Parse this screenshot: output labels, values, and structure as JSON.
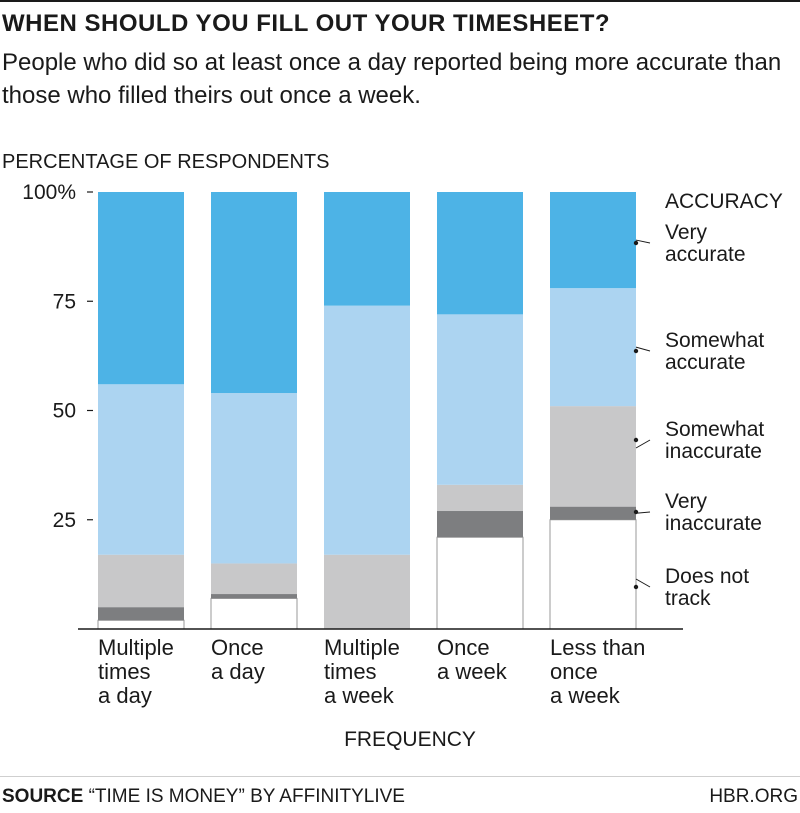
{
  "header": {
    "title": "WHEN SHOULD YOU FILL OUT YOUR TIMESHEET?",
    "subtitle": "People who did so at least once a day reported being more accurate than those who filled theirs out once a week."
  },
  "footer": {
    "source_label": "SOURCE",
    "source_text": "“TIME IS MONEY” BY AFFINITYLIVE",
    "site": "HBR.ORG"
  },
  "chart_data": {
    "type": "bar",
    "stacked": true,
    "ylabel": "PERCENTAGE OF RESPONDENTS",
    "xlabel": "FREQUENCY",
    "legend_title": "ACCURACY",
    "legend_position": "right",
    "ylim": [
      0,
      100
    ],
    "yticks": [
      {
        "value": 25,
        "label": "25"
      },
      {
        "value": 50,
        "label": "50"
      },
      {
        "value": 75,
        "label": "75"
      },
      {
        "value": 100,
        "label": "100%"
      }
    ],
    "categories": [
      [
        "Multiple",
        "times",
        "a day"
      ],
      [
        "Once",
        "a day"
      ],
      [
        "Multiple",
        "times",
        "a week"
      ],
      [
        "Once",
        "a week"
      ],
      [
        "Less than",
        "once",
        "a week"
      ]
    ],
    "series": [
      {
        "name": [
          "Does not",
          "track"
        ],
        "color": "#ffffff",
        "values": [
          2,
          7,
          0,
          21,
          25
        ]
      },
      {
        "name": [
          "Very",
          "inaccurate"
        ],
        "color": "#7d7e80",
        "values": [
          3,
          1,
          0,
          6,
          3
        ]
      },
      {
        "name": [
          "Somewhat",
          "inaccurate"
        ],
        "color": "#c8c8c9",
        "values": [
          12,
          7,
          17,
          6,
          23
        ]
      },
      {
        "name": [
          "Somewhat",
          "accurate"
        ],
        "color": "#acd4f1",
        "values": [
          39,
          39,
          57,
          39,
          27
        ]
      },
      {
        "name": [
          "Very",
          "accurate"
        ],
        "color": "#4db3e6",
        "values": [
          44,
          46,
          26,
          28,
          22
        ]
      }
    ]
  }
}
